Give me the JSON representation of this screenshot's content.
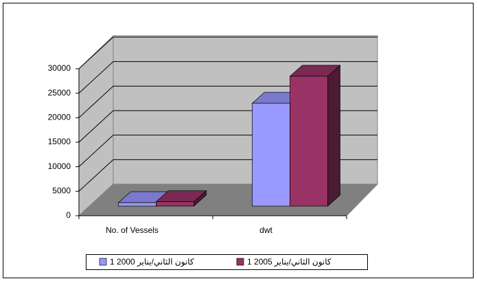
{
  "chart_data": {
    "type": "bar3d",
    "categories": [
      "No. of Vessels",
      "dwt"
    ],
    "series": [
      {
        "name": "1 كانون الثاني/يناير 2000",
        "color": "#9999ff",
        "values": [
          700,
          21000
        ]
      },
      {
        "name": "1 كانون الثاني/يناير 2005",
        "color": "#993366",
        "values": [
          900,
          26500
        ]
      }
    ],
    "ylim": [
      0,
      30000
    ],
    "yticks": [
      0,
      5000,
      10000,
      15000,
      20000,
      25000,
      30000
    ],
    "grid": true,
    "legend": "bottom"
  }
}
